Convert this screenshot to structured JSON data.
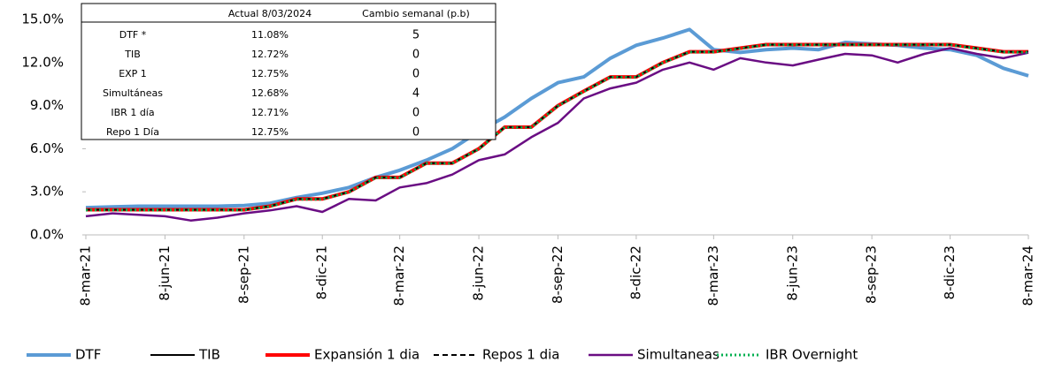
{
  "chart_data": {
    "type": "line",
    "x": [
      "2021-03-08",
      "2021-04-08",
      "2021-05-08",
      "2021-06-08",
      "2021-07-08",
      "2021-08-08",
      "2021-09-08",
      "2021-10-08",
      "2021-11-08",
      "2021-12-08",
      "2022-01-08",
      "2022-02-08",
      "2022-03-08",
      "2022-04-08",
      "2022-05-08",
      "2022-06-08",
      "2022-07-08",
      "2022-08-08",
      "2022-09-08",
      "2022-10-08",
      "2022-11-08",
      "2022-12-08",
      "2023-01-08",
      "2023-02-08",
      "2023-03-08",
      "2023-04-08",
      "2023-05-08",
      "2023-06-08",
      "2023-07-08",
      "2023-08-08",
      "2023-09-08",
      "2023-10-08",
      "2023-11-08",
      "2023-12-08",
      "2024-01-08",
      "2024-02-08",
      "2024-03-08"
    ],
    "xlim": [
      "2021-03-08",
      "2024-03-08"
    ],
    "xticks": [
      {
        "value": "2021-03-08",
        "label": "8-mar-21"
      },
      {
        "value": "2021-06-08",
        "label": "8-jun-21"
      },
      {
        "value": "2021-09-08",
        "label": "8-sep-21"
      },
      {
        "value": "2021-12-08",
        "label": "8-dic-21"
      },
      {
        "value": "2022-03-08",
        "label": "8-mar-22"
      },
      {
        "value": "2022-06-08",
        "label": "8-jun-22"
      },
      {
        "value": "2022-09-08",
        "label": "8-sep-22"
      },
      {
        "value": "2022-12-08",
        "label": "8-dic-22"
      },
      {
        "value": "2023-03-08",
        "label": "8-mar-23"
      },
      {
        "value": "2023-06-08",
        "label": "8-jun-23"
      },
      {
        "value": "2023-09-08",
        "label": "8-sep-23"
      },
      {
        "value": "2023-12-08",
        "label": "8-dic-23"
      },
      {
        "value": "2024-03-08",
        "label": "8-mar-24"
      }
    ],
    "ylim": [
      0,
      15
    ],
    "yticks": [
      {
        "value": 0,
        "label": "0.0%"
      },
      {
        "value": 3,
        "label": "3.0%"
      },
      {
        "value": 6,
        "label": "6.0%"
      },
      {
        "value": 9,
        "label": "9.0%"
      },
      {
        "value": 12,
        "label": "12.0%"
      },
      {
        "value": 15,
        "label": "15.0%"
      }
    ],
    "grid": false,
    "series": [
      {
        "name": "DTF",
        "color": "#5b9bd5",
        "width": 4,
        "dash": "solid",
        "values": [
          1.9,
          1.95,
          2.0,
          2.0,
          2.0,
          2.0,
          2.05,
          2.2,
          2.6,
          2.9,
          3.3,
          4.0,
          4.5,
          5.2,
          6.0,
          7.2,
          8.2,
          9.5,
          10.6,
          11.0,
          12.3,
          13.2,
          13.7,
          14.3,
          12.9,
          12.7,
          12.9,
          13.0,
          12.9,
          13.4,
          13.3,
          13.2,
          13.0,
          12.9,
          12.5,
          11.6,
          11.08
        ]
      },
      {
        "name": "TIB",
        "color": "#000000",
        "width": 2,
        "dash": "solid",
        "values": [
          1.75,
          1.75,
          1.75,
          1.75,
          1.75,
          1.75,
          1.75,
          2.0,
          2.5,
          2.5,
          3.0,
          4.0,
          4.0,
          5.0,
          5.0,
          6.0,
          7.5,
          7.5,
          9.0,
          10.0,
          11.0,
          11.0,
          12.0,
          12.75,
          12.75,
          13.0,
          13.25,
          13.25,
          13.25,
          13.25,
          13.25,
          13.25,
          13.25,
          13.25,
          13.0,
          12.75,
          12.72
        ]
      },
      {
        "name": "Expansión 1 dia",
        "color": "#ff0000",
        "width": 4,
        "dash": "solid",
        "values": [
          1.75,
          1.75,
          1.75,
          1.75,
          1.75,
          1.75,
          1.75,
          2.0,
          2.5,
          2.5,
          3.0,
          4.0,
          4.0,
          5.0,
          5.0,
          6.0,
          7.5,
          7.5,
          9.0,
          10.0,
          11.0,
          11.0,
          12.0,
          12.75,
          12.75,
          13.0,
          13.25,
          13.25,
          13.25,
          13.25,
          13.25,
          13.25,
          13.25,
          13.25,
          13.0,
          12.75,
          12.75
        ]
      },
      {
        "name": "Repos 1 dia",
        "color": "#000000",
        "width": 2,
        "dash": "dashed",
        "values": [
          1.75,
          1.75,
          1.75,
          1.75,
          1.75,
          1.75,
          1.75,
          2.0,
          2.5,
          2.5,
          3.0,
          4.0,
          4.0,
          5.0,
          5.0,
          6.0,
          7.5,
          7.5,
          9.0,
          10.0,
          11.0,
          11.0,
          12.0,
          12.75,
          12.75,
          13.0,
          13.25,
          13.25,
          13.25,
          13.25,
          13.25,
          13.25,
          13.25,
          13.25,
          13.0,
          12.75,
          12.75
        ]
      },
      {
        "name": "Simultaneas",
        "color": "#6a0d83",
        "width": 2.5,
        "dash": "solid",
        "values": [
          1.3,
          1.5,
          1.4,
          1.3,
          1.0,
          1.2,
          1.5,
          1.7,
          2.0,
          1.6,
          2.5,
          2.4,
          3.3,
          3.6,
          4.2,
          5.2,
          5.6,
          6.8,
          7.8,
          9.5,
          10.2,
          10.6,
          11.5,
          12.0,
          11.5,
          12.3,
          12.0,
          11.8,
          12.2,
          12.6,
          12.5,
          12.0,
          12.6,
          13.0,
          12.6,
          12.3,
          12.68
        ]
      },
      {
        "name": "IBR Overnight",
        "color": "#00b050",
        "width": 3,
        "dash": "dotted",
        "values": [
          1.73,
          1.73,
          1.73,
          1.73,
          1.73,
          1.73,
          1.73,
          1.98,
          2.48,
          2.48,
          2.98,
          3.98,
          3.98,
          4.98,
          4.98,
          5.98,
          7.48,
          7.48,
          8.98,
          9.98,
          10.98,
          10.98,
          11.98,
          12.73,
          12.73,
          12.98,
          13.23,
          13.23,
          13.23,
          13.23,
          13.23,
          13.23,
          13.23,
          13.23,
          12.98,
          12.73,
          12.71
        ]
      }
    ]
  },
  "table": {
    "header": [
      "Actual 8/03/2024",
      "Cambio semanal (p.b)"
    ],
    "rows": [
      [
        "DTF *",
        "11.08%",
        "5"
      ],
      [
        "TIB",
        "12.72%",
        "0"
      ],
      [
        "EXP 1",
        "12.75%",
        "0"
      ],
      [
        "Simultáneas",
        "12.68%",
        "4"
      ],
      [
        "IBR 1 día",
        "12.71%",
        "0"
      ],
      [
        "Repo 1 Día",
        "12.75%",
        "0"
      ]
    ]
  }
}
